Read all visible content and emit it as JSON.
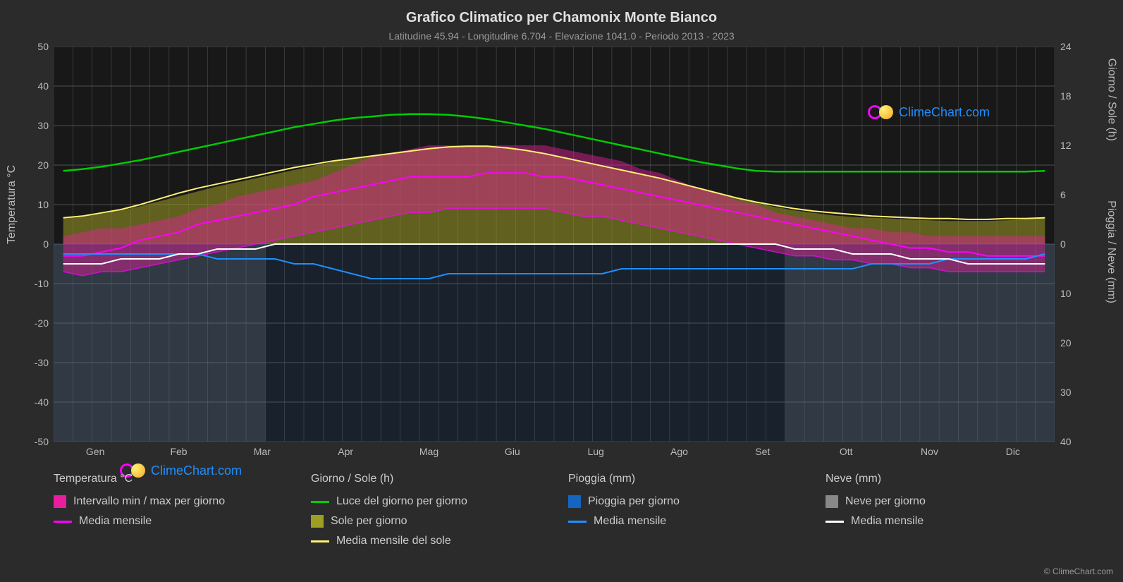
{
  "title": "Grafico Climatico per Chamonix Monte Bianco",
  "subtitle": "Latitudine 45.94 - Longitudine 6.704 - Elevazione 1041.0 - Periodo 2013 - 2023",
  "copyright": "© ClimeChart.com",
  "logo_text": "ClimeChart.com",
  "axes": {
    "left_label": "Temperatura °C",
    "right_label_top": "Giorno / Sole (h)",
    "right_label_bottom": "Pioggia / Neve (mm)",
    "left_ticks": [
      -50,
      -40,
      -30,
      -20,
      -10,
      0,
      10,
      20,
      30,
      40,
      50
    ],
    "left_min": -50,
    "left_max": 50,
    "right_top_ticks": [
      0,
      6,
      12,
      18,
      24
    ],
    "right_top_min": 0,
    "right_top_max": 24,
    "right_top_at_left0": 0,
    "right_bottom_ticks": [
      0,
      10,
      20,
      30,
      40
    ],
    "right_bottom_min": 0,
    "right_bottom_max": 40,
    "right_bottom_at_left0": 0,
    "months": [
      "Gen",
      "Feb",
      "Mar",
      "Apr",
      "Mag",
      "Giu",
      "Lug",
      "Ago",
      "Set",
      "Ott",
      "Nov",
      "Dic"
    ],
    "grid_color": "#505050",
    "grid_weeks": 52,
    "label_fontsize": 16,
    "tick_fontsize": 14
  },
  "colors": {
    "background": "#2b2b2b",
    "plot_bg": "#181818",
    "daylight_line": "#00cc00",
    "sun_line": "#fff176",
    "sun_fill": "#9e9d24",
    "temp_line": "#ff00ff",
    "temp_fill": "#e91e9e",
    "rain_line": "#1e90ff",
    "rain_fill": "#1565c0",
    "snow_line": "#ffffff",
    "snow_fill": "#888888"
  },
  "series": {
    "daylight_hours": [
      8.9,
      9.1,
      9.4,
      9.8,
      10.2,
      10.7,
      11.2,
      11.7,
      12.2,
      12.7,
      13.2,
      13.7,
      14.2,
      14.6,
      15.0,
      15.3,
      15.5,
      15.7,
      15.8,
      15.8,
      15.7,
      15.5,
      15.2,
      14.8,
      14.4,
      14.0,
      13.5,
      13.0,
      12.5,
      12.0,
      11.5,
      11.0,
      10.5,
      10.0,
      9.6,
      9.2,
      8.9,
      8.8,
      8.8,
      8.8,
      8.8,
      8.8,
      8.8,
      8.8,
      8.8,
      8.8,
      8.8,
      8.8,
      8.8,
      8.8,
      8.8,
      8.9
    ],
    "sun_hours": [
      3.1,
      3.3,
      3.7,
      4.1,
      4.6,
      5.2,
      5.8,
      6.4,
      7.0,
      7.5,
      8.0,
      8.5,
      9.0,
      9.5,
      10.0,
      10.3,
      10.6,
      10.9,
      11.2,
      11.5,
      11.8,
      11.9,
      11.9,
      11.8,
      11.5,
      11.0,
      10.5,
      10.0,
      9.5,
      9.0,
      8.5,
      8.0,
      7.4,
      6.8,
      6.2,
      5.6,
      5.0,
      4.5,
      4.1,
      3.8,
      3.5,
      3.3,
      3.2,
      3.1,
      3.0,
      2.9,
      2.8,
      2.8,
      2.8,
      2.9,
      3.0,
      3.1
    ],
    "sun_mean_hours": [
      3.2,
      3.4,
      3.8,
      4.2,
      4.8,
      5.5,
      6.2,
      6.8,
      7.3,
      7.8,
      8.3,
      8.8,
      9.3,
      9.7,
      10.1,
      10.4,
      10.7,
      11.0,
      11.3,
      11.6,
      11.8,
      11.9,
      11.9,
      11.7,
      11.4,
      11.0,
      10.5,
      10.0,
      9.5,
      9.0,
      8.5,
      8.0,
      7.4,
      6.8,
      6.2,
      5.6,
      5.1,
      4.7,
      4.3,
      4.0,
      3.8,
      3.6,
      3.4,
      3.3,
      3.2,
      3.1,
      3.1,
      3.0,
      3.0,
      3.1,
      3.1,
      3.2
    ],
    "temp_max": [
      2,
      3,
      4,
      4,
      5,
      6,
      7,
      9,
      10,
      12,
      13,
      14,
      15,
      16,
      18,
      20,
      22,
      23,
      24,
      25,
      25,
      25,
      25,
      25,
      25,
      25,
      24,
      23,
      22,
      21,
      19,
      18,
      16,
      14,
      13,
      11,
      10,
      8,
      7,
      6,
      5,
      4,
      4,
      3,
      3,
      2,
      2,
      2,
      2,
      2,
      2,
      2
    ],
    "temp_mean": [
      -3,
      -3,
      -2,
      -1,
      1,
      2,
      3,
      5,
      6,
      7,
      8,
      9,
      10,
      12,
      13,
      14,
      15,
      16,
      17,
      17,
      17,
      17,
      18,
      18,
      18,
      17,
      17,
      16,
      15,
      14,
      13,
      12,
      11,
      10,
      9,
      8,
      7,
      6,
      5,
      4,
      3,
      2,
      1,
      0,
      -1,
      -1,
      -2,
      -2,
      -3,
      -3,
      -3,
      -3
    ],
    "temp_min": [
      -7,
      -8,
      -7,
      -7,
      -6,
      -5,
      -4,
      -3,
      -2,
      -1,
      0,
      1,
      2,
      3,
      4,
      5,
      6,
      7,
      8,
      8,
      9,
      9,
      9,
      9,
      9,
      9,
      8,
      7,
      7,
      6,
      5,
      4,
      3,
      2,
      1,
      0,
      -1,
      -2,
      -3,
      -3,
      -4,
      -4,
      -5,
      -5,
      -6,
      -6,
      -7,
      -7,
      -7,
      -7,
      -7,
      -7
    ],
    "rain_mm": [
      2,
      2,
      2,
      2,
      2,
      2,
      2,
      2,
      3,
      3,
      3,
      3,
      4,
      4,
      5,
      6,
      7,
      7,
      7,
      7,
      6,
      6,
      6,
      6,
      6,
      6,
      6,
      6,
      6,
      5,
      5,
      5,
      5,
      5,
      5,
      5,
      5,
      5,
      5,
      5,
      5,
      5,
      4,
      4,
      4,
      4,
      3,
      3,
      3,
      3,
      3,
      2
    ],
    "snow_mm": [
      4,
      4,
      4,
      3,
      3,
      3,
      2,
      2,
      1,
      1,
      1,
      0,
      0,
      0,
      0,
      0,
      0,
      0,
      0,
      0,
      0,
      0,
      0,
      0,
      0,
      0,
      0,
      0,
      0,
      0,
      0,
      0,
      0,
      0,
      0,
      0,
      0,
      0,
      1,
      1,
      1,
      2,
      2,
      2,
      3,
      3,
      3,
      4,
      4,
      4,
      4,
      4
    ]
  },
  "legend": {
    "col1_header": "Temperatura °C",
    "col1_item1": "Intervallo min / max per giorno",
    "col1_item2": "Media mensile",
    "col2_header": "Giorno / Sole (h)",
    "col2_item1": "Luce del giorno per giorno",
    "col2_item2": "Sole per giorno",
    "col2_item3": "Media mensile del sole",
    "col3_header": "Pioggia (mm)",
    "col3_item1": "Pioggia per giorno",
    "col3_item2": "Media mensile",
    "col4_header": "Neve (mm)",
    "col4_item1": "Neve per giorno",
    "col4_item2": "Media mensile"
  }
}
